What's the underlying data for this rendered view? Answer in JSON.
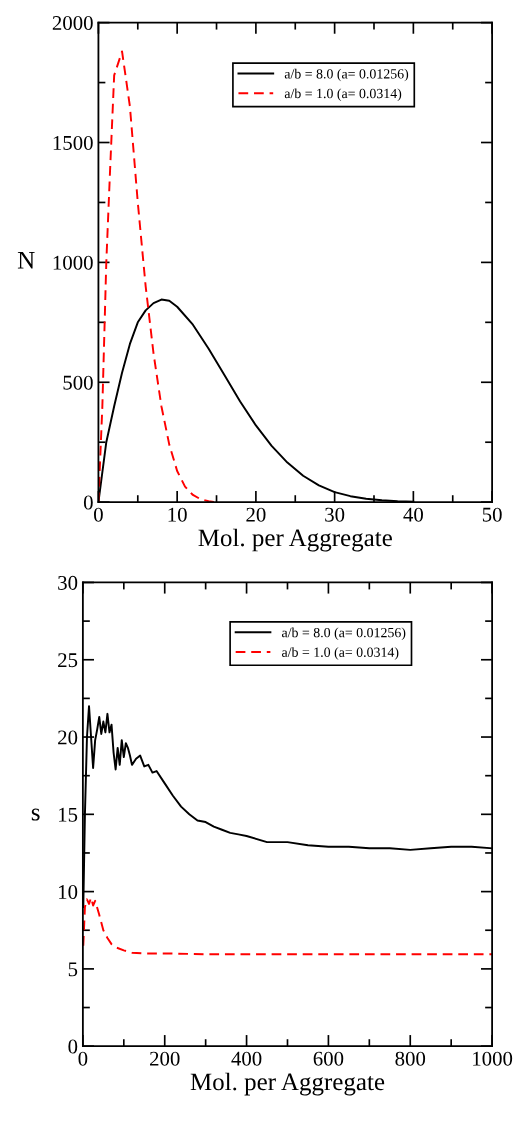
{
  "chart_data": [
    {
      "type": "line",
      "xlabel": "Mol. per Aggregate",
      "ylabel": "N",
      "xlim": [
        0,
        50
      ],
      "ylim": [
        0,
        2000
      ],
      "xticks": [
        0,
        10,
        20,
        30,
        40,
        50
      ],
      "yticks": [
        0,
        500,
        1000,
        1500,
        2000
      ],
      "legend": "top right",
      "grid": false,
      "series": [
        {
          "name": "a/b = 8.0 (a= 0.01256)",
          "color": "#000000",
          "line_style": "solid",
          "x": [
            0,
            1,
            2,
            3,
            4,
            5,
            6,
            7,
            8,
            9,
            10,
            12,
            14,
            16,
            18,
            20,
            22,
            24,
            26,
            28,
            30,
            32,
            34,
            36,
            38,
            40
          ],
          "values": [
            0,
            250,
            400,
            540,
            660,
            750,
            800,
            830,
            845,
            840,
            815,
            740,
            640,
            530,
            420,
            320,
            235,
            165,
            110,
            70,
            42,
            25,
            14,
            8,
            4,
            2
          ]
        },
        {
          "name": "a/b = 1.0 (a= 0.0314)",
          "color": "#ff0000",
          "line_style": "dashed",
          "x": [
            0,
            0.5,
            1,
            1.5,
            2,
            3,
            4,
            5,
            6,
            7,
            8,
            9,
            10,
            11,
            12,
            13,
            14,
            15
          ],
          "values": [
            0,
            400,
            1000,
            1400,
            1780,
            1880,
            1650,
            1250,
            900,
            620,
            400,
            240,
            130,
            65,
            30,
            12,
            4,
            0
          ]
        }
      ]
    },
    {
      "type": "line",
      "xlabel": "Mol. per Aggregate",
      "ylabel": "s",
      "xlim": [
        0,
        1000
      ],
      "ylim": [
        0,
        30
      ],
      "xticks": [
        0,
        200,
        400,
        600,
        800,
        1000
      ],
      "yticks": [
        0,
        5,
        10,
        15,
        20,
        25,
        30
      ],
      "legend": "top right",
      "grid": false,
      "series": [
        {
          "name": "a/b = 8.0 (a= 0.01256)",
          "color": "#000000",
          "line_style": "solid",
          "x": [
            1,
            5,
            10,
            15,
            20,
            25,
            30,
            35,
            40,
            45,
            50,
            55,
            60,
            65,
            70,
            75,
            80,
            85,
            90,
            95,
            100,
            105,
            110,
            115,
            120,
            130,
            140,
            150,
            160,
            170,
            180,
            200,
            220,
            240,
            260,
            280,
            300,
            320,
            340,
            360,
            380,
            400,
            450,
            500,
            550,
            600,
            650,
            700,
            750,
            800,
            850,
            900,
            950,
            1000
          ],
          "values": [
            9,
            15,
            20,
            22,
            20,
            18,
            19.8,
            20.5,
            21.3,
            20.2,
            21,
            20.3,
            21.5,
            20.3,
            20.8,
            19,
            17.9,
            19.3,
            18.2,
            19.8,
            18.7,
            19.6,
            19.3,
            18.8,
            18.2,
            18.6,
            18.8,
            18.1,
            18.2,
            17.7,
            17.8,
            17,
            16.2,
            15.5,
            15,
            14.6,
            14.5,
            14.2,
            14,
            13.8,
            13.7,
            13.6,
            13.2,
            13.2,
            13,
            12.9,
            12.9,
            12.8,
            12.8,
            12.7,
            12.8,
            12.9,
            12.9,
            12.8
          ]
        },
        {
          "name": "a/b = 1.0 (a= 0.0314)",
          "color": "#ff0000",
          "line_style": "dashed",
          "x": [
            1,
            5,
            10,
            15,
            20,
            25,
            30,
            40,
            50,
            60,
            70,
            80,
            100,
            120,
            150,
            200,
            300,
            400,
            500,
            600,
            700,
            800,
            900,
            1000
          ],
          "values": [
            6.5,
            9,
            9.5,
            9.2,
            9.6,
            9.1,
            9.4,
            8.5,
            7.5,
            7,
            6.6,
            6.4,
            6.2,
            6.05,
            6,
            6,
            5.95,
            5.95,
            5.95,
            5.95,
            5.95,
            5.95,
            5.95,
            5.95
          ]
        }
      ]
    }
  ]
}
